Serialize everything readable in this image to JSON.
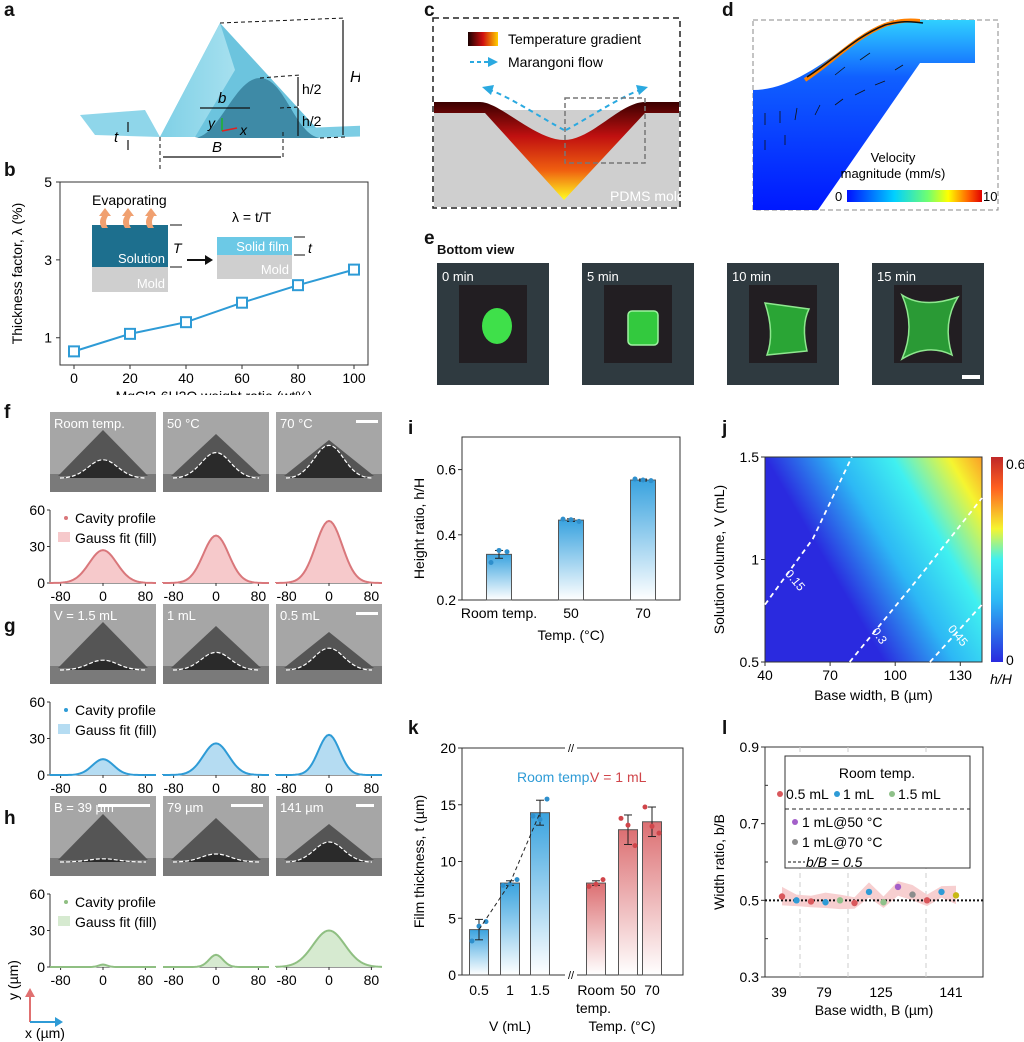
{
  "panels": {
    "a": {
      "letter": "a",
      "labels": {
        "H": "H",
        "h_half_top": "h/2",
        "h_half_bottom": "h/2",
        "b": "b",
        "B": "B",
        "t": "t",
        "x": "x",
        "y": "y"
      }
    },
    "b": {
      "letter": "b"
    },
    "c": {
      "letter": "c",
      "legend_temp": "Temperature gradient",
      "legend_flow": "Marangoni flow",
      "mold_label": "PDMS mold"
    },
    "d": {
      "letter": "d",
      "colorbar_title_1": "Velocity",
      "colorbar_title_2": "magnitude (mm/s)",
      "colorbar_min": "0",
      "colorbar_max": "10"
    },
    "e": {
      "letter": "e",
      "title": "Bottom view",
      "frames": [
        "0 min",
        "5 min",
        "10 min",
        "15 min"
      ]
    },
    "f": {
      "letter": "f",
      "images": [
        "Room temp.",
        "50 °C",
        "70 °C"
      ],
      "legend_points": "Cavity profile",
      "legend_fill": "Gauss fit (fill)",
      "color": "#d9777b",
      "fill": "#f6c9cb",
      "peaks": [
        27,
        39,
        51
      ],
      "sigmas": [
        26,
        24,
        25
      ]
    },
    "g": {
      "letter": "g",
      "images": [
        "V = 1.5 mL",
        "1 mL",
        "0.5 mL"
      ],
      "legend_points": "Cavity profile",
      "legend_fill": "Gauss fit (fill)",
      "color": "#2e9bd6",
      "fill": "#b5dcf2",
      "peaks": [
        13,
        26,
        33
      ],
      "sigmas": [
        20,
        24,
        20
      ]
    },
    "h": {
      "letter": "h",
      "images": [
        "B = 39 µm",
        "79 µm",
        "141 µm"
      ],
      "legend_points": "Cavity profile",
      "legend_fill": "Gauss fit (fill)",
      "color": "#8fbf82",
      "fill": "#d6ead0",
      "peaks": [
        2,
        10,
        30
      ],
      "sigmas": [
        8,
        13,
        30
      ],
      "axis_y": "y (µm)",
      "axis_x": "x (µm)"
    },
    "i": {
      "letter": "i"
    },
    "j": {
      "letter": "j",
      "contour_labels": [
        "0.15",
        "0.3",
        "0.45"
      ],
      "colorbar_min": "0",
      "colorbar_max": "0.6",
      "colorbar_label": "h/H"
    },
    "k": {
      "letter": "k",
      "group1_label": "Room temp.",
      "group2_label": "V = 1 mL",
      "group1_axis": "V (mL)",
      "group2_axis": "Temp. (°C)"
    },
    "l": {
      "letter": "l",
      "legend_title": "Room temp.",
      "legend_items": [
        "0.5 mL",
        "1 mL",
        "1.5 mL",
        "1 mL@50 °C",
        "1 mL@70 °C",
        "b/B = 0.5"
      ]
    }
  },
  "chart_data": [
    {
      "id": "b",
      "type": "line",
      "title": "",
      "xlabel": "MgCl2·6H2O weight ratio (wt%)",
      "ylabel": "Thickness factor, λ (%)",
      "x": [
        0,
        20,
        40,
        60,
        80,
        100
      ],
      "values": [
        0.65,
        1.1,
        1.4,
        1.9,
        2.35,
        2.75
      ],
      "xlim": [
        -5,
        105
      ],
      "ylim": [
        0.3,
        5
      ],
      "xticks": [
        "0",
        "20",
        "40",
        "60",
        "80",
        "100"
      ],
      "yticks": [
        "1",
        "3",
        "5"
      ],
      "color": "#2e9bd6",
      "inset": {
        "evaporating": "Evaporating",
        "solution": "Solution",
        "mold": "Mold",
        "T": "T",
        "formula": "λ = t/T",
        "solid_film": "Solid film",
        "mold2": "Mold",
        "t": "t"
      }
    },
    {
      "id": "i",
      "type": "bar",
      "categories": [
        "Room temp.",
        "50",
        "70"
      ],
      "values": [
        0.34,
        0.445,
        0.568
      ],
      "errors": [
        0.012,
        0.004,
        0.003
      ],
      "points": [
        [
          0.315,
          0.352,
          0.348
        ],
        [
          0.448,
          0.446,
          0.441
        ],
        [
          0.571,
          0.568,
          0.566
        ]
      ],
      "xlabel": "Temp. (°C)",
      "ylabel": "Height ratio, h/H",
      "ylim": [
        0.2,
        0.7
      ],
      "yticks": [
        "0.2",
        "0.4",
        "0.6"
      ],
      "color": "#3aa3df"
    },
    {
      "id": "j",
      "type": "heatmap",
      "xlabel": "Base width, B (µm)",
      "ylabel": "Solution volume, V (mL)",
      "xlim": [
        40,
        140
      ],
      "ylim": [
        0.5,
        1.5
      ],
      "xticks": [
        "40",
        "70",
        "100",
        "130"
      ],
      "yticks": [
        "0.5",
        "1",
        "1.5"
      ],
      "zlim": [
        0,
        0.6
      ],
      "zlabel": "h/H",
      "contours": [
        0.15,
        0.3,
        0.45
      ]
    },
    {
      "id": "k",
      "type": "bar",
      "ylabel": "Film thickness, t (µm)",
      "ylim": [
        0,
        20
      ],
      "yticks": [
        "0",
        "5",
        "10",
        "15",
        "20"
      ],
      "groups": [
        {
          "name": "Room temp.",
          "axis": "V (mL)",
          "categories": [
            "0.5",
            "1",
            "1.5"
          ],
          "values": [
            4.0,
            8.1,
            14.3
          ],
          "errors": [
            0.9,
            0.2,
            1.1
          ],
          "points": [
            [
              3.0,
              4.3,
              4.7
            ],
            [
              7.9,
              8.0,
              8.4
            ],
            [
              14.0,
              13.7,
              15.5
            ]
          ],
          "color": "#3aa3df"
        },
        {
          "name": "V = 1 mL",
          "axis": "Temp. (°C)",
          "categories": [
            "Room temp.",
            "50",
            "70"
          ],
          "values": [
            8.1,
            12.8,
            13.5
          ],
          "errors": [
            0.2,
            1.3,
            1.3
          ],
          "points": [
            [
              7.8,
              8.0,
              8.4
            ],
            [
              13.8,
              13.2,
              11.4
            ],
            [
              14.8,
              13.1,
              12.5
            ]
          ],
          "color": "#dc6f72"
        }
      ]
    },
    {
      "id": "l",
      "type": "scatter",
      "xlabel": "Base width, B (µm)",
      "ylabel": "Width ratio, b/B",
      "ylim": [
        0.3,
        0.9
      ],
      "yticks": [
        "0.3",
        "0.5",
        "0.7",
        "0.9"
      ],
      "categories": [
        "39",
        "79",
        "125",
        "141"
      ],
      "series": [
        {
          "name": "0.5 mL",
          "color": "#d9585c"
        },
        {
          "name": "1 mL",
          "color": "#2e9bd6"
        },
        {
          "name": "1.5 mL",
          "color": "#8fc18a"
        },
        {
          "name": "1 mL@50 °C",
          "color": "#a35fc9"
        },
        {
          "name": "1 mL@70 °C",
          "color": "#8c8c8c"
        },
        {
          "name": "1 mL@70 °C (141)",
          "color": "#c8b814"
        }
      ],
      "points": [
        {
          "s": 0,
          "y": 0.51
        },
        {
          "s": 1,
          "y": 0.5
        },
        {
          "s": 0,
          "y": 0.497
        },
        {
          "s": 1,
          "y": 0.495
        },
        {
          "s": 2,
          "y": 0.5
        },
        {
          "s": 0,
          "y": 0.493
        },
        {
          "s": 1,
          "y": 0.522
        },
        {
          "s": 2,
          "y": 0.495
        },
        {
          "s": 3,
          "y": 0.535
        },
        {
          "s": 4,
          "y": 0.515
        },
        {
          "s": 0,
          "y": 0.5
        },
        {
          "s": 1,
          "y": 0.522
        },
        {
          "s": 5,
          "y": 0.513
        }
      ],
      "reference_line": 0.5
    }
  ]
}
